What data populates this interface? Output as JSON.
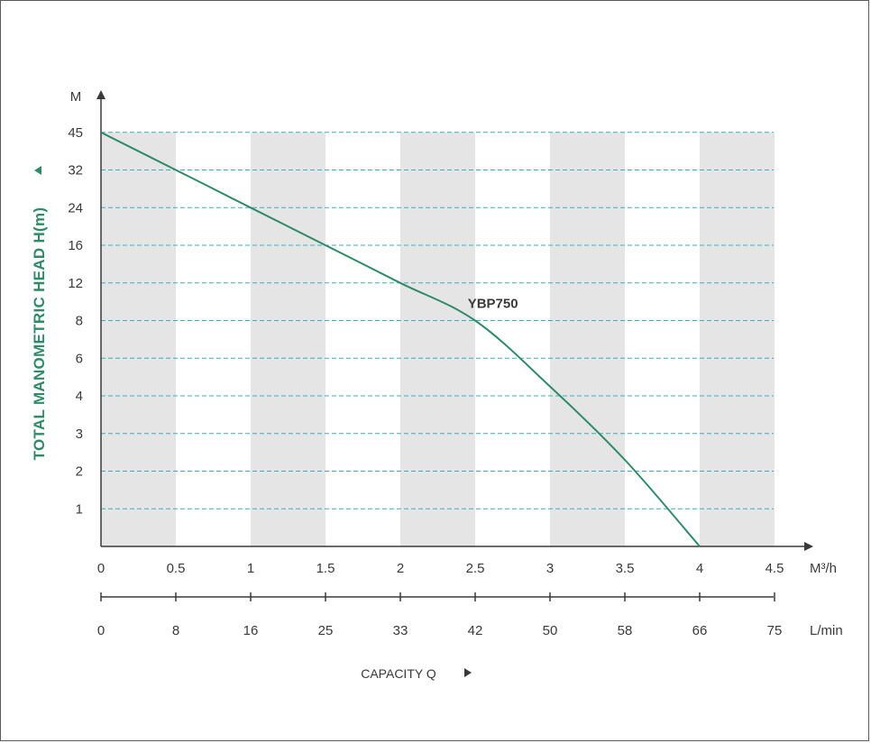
{
  "chart_data": {
    "type": "line",
    "y_axis": {
      "unit": "M",
      "label": "TOTAL MANOMETRIC HEAD H(m)",
      "ticks": [
        "45",
        "32",
        "24",
        "16",
        "12",
        "8",
        "6",
        "4",
        "3",
        "2",
        "1"
      ]
    },
    "x_axis_primary": {
      "unit": "M³/h",
      "ticks": [
        "0",
        "0.5",
        "1",
        "1.5",
        "2",
        "2.5",
        "3",
        "3.5",
        "4",
        "4.5"
      ]
    },
    "x_axis_secondary": {
      "unit": "L/min",
      "ticks": [
        "0",
        "8",
        "16",
        "25",
        "33",
        "42",
        "50",
        "58",
        "66",
        "75"
      ]
    },
    "x_label": "CAPACITY Q",
    "xlim": [
      0,
      4.5
    ],
    "grid": true,
    "series": [
      {
        "name": "YBP750",
        "x": [
          0,
          0.5,
          1.0,
          1.5,
          2.0,
          2.5,
          3.0,
          3.5,
          4.0
        ],
        "y": [
          45,
          32,
          24,
          16,
          12,
          8,
          4.5,
          2.3,
          0
        ]
      }
    ],
    "colors": {
      "curve": "#2e8b68",
      "grid": "#3aaec0",
      "band": "#e5e5e5",
      "ylabel": "#2e8b68"
    }
  }
}
